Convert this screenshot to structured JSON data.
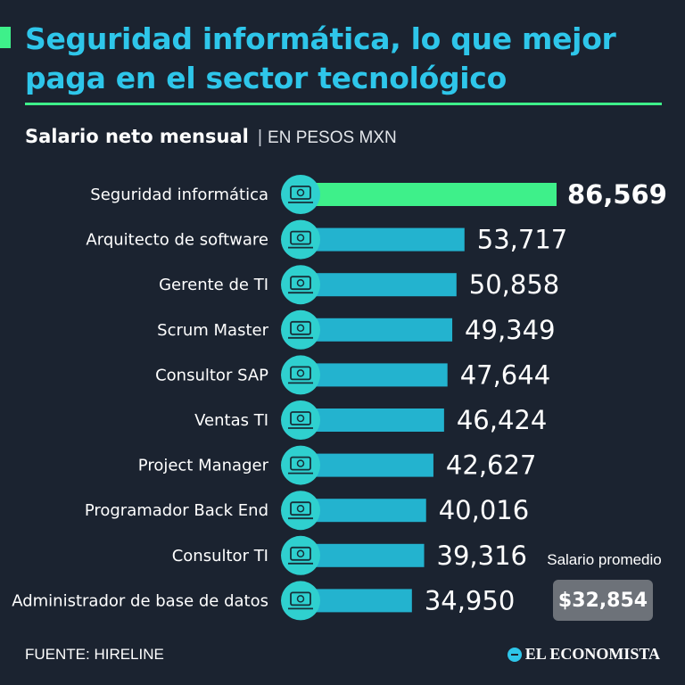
{
  "title": "Seguridad informática, lo que mejor paga en el sector tecnológico",
  "subtitle": {
    "main": "Salario neto mensual",
    "separator": "|",
    "unit": "EN PESOS MXN"
  },
  "average": {
    "label": "Salario promedio",
    "value": "$32,854"
  },
  "source": "FUENTE: HIRELINE",
  "brand": "EL ECONOMISTA",
  "colors": {
    "background": "#1b2330",
    "title": "#2ec6ea",
    "highlight_bar": "#3ef08a",
    "bar": "#23b3cf",
    "icon_circle": "#2fd0cf",
    "average_box": "#6d7279"
  },
  "chart_data": {
    "type": "bar",
    "orientation": "horizontal",
    "categories": [
      "Seguridad informática",
      "Arquitecto de software",
      "Gerente de TI",
      "Scrum Master",
      "Consultor SAP",
      "Ventas TI",
      "Project Manager",
      "Programador Back End",
      "Consultor TI",
      "Administrador de base de datos"
    ],
    "values": [
      86569,
      53717,
      50858,
      49349,
      47644,
      46424,
      42627,
      40016,
      39316,
      34950
    ],
    "value_labels": [
      "86,569",
      "53,717",
      "50,858",
      "49,349",
      "47,644",
      "46,424",
      "42,627",
      "40,016",
      "39,316",
      "34,950"
    ],
    "highlight_index": 0,
    "icons": [
      "laptop-lock-icon",
      "code-window-icon",
      "manager-icon",
      "scrum-cycle-icon",
      "consultant-chart-icon",
      "sales-growth-icon",
      "team-gear-icon",
      "developer-screen-icon",
      "consultant-desk-icon",
      "database-admin-icon"
    ],
    "xlim": [
      0,
      86569
    ],
    "grid": false,
    "legend": "none"
  }
}
